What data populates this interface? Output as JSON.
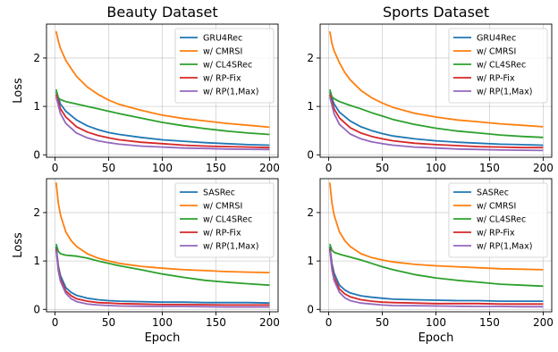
{
  "chart_data": [
    {
      "type": "line",
      "title": "Beauty Dataset",
      "xlabel": "",
      "ylabel": "Loss",
      "xlim": [
        -8,
        208
      ],
      "ylim": [
        -0.05,
        2.7
      ],
      "xticks": [
        0,
        50,
        100,
        150,
        200
      ],
      "yticks": [
        0,
        1,
        2
      ],
      "grid": true,
      "legend": "top-right",
      "series": [
        {
          "name": "GRU4Rec",
          "color": "#1f77b4",
          "x": [
            1,
            5,
            10,
            20,
            30,
            40,
            50,
            60,
            80,
            100,
            120,
            140,
            160,
            180,
            200
          ],
          "y": [
            1.3,
            1.05,
            0.9,
            0.72,
            0.6,
            0.52,
            0.46,
            0.42,
            0.36,
            0.31,
            0.28,
            0.25,
            0.23,
            0.21,
            0.2
          ]
        },
        {
          "name": "w/ CMRSI",
          "color": "#ff7f0e",
          "x": [
            1,
            3,
            5,
            10,
            15,
            20,
            30,
            40,
            50,
            60,
            80,
            100,
            120,
            140,
            160,
            180,
            200
          ],
          "y": [
            2.55,
            2.35,
            2.2,
            1.95,
            1.78,
            1.62,
            1.4,
            1.25,
            1.13,
            1.04,
            0.92,
            0.82,
            0.75,
            0.7,
            0.65,
            0.61,
            0.57
          ]
        },
        {
          "name": "w/ CL4SRec",
          "color": "#2ca02c",
          "x": [
            1,
            3,
            5,
            10,
            20,
            30,
            40,
            50,
            60,
            80,
            100,
            120,
            140,
            160,
            180,
            200
          ],
          "y": [
            1.35,
            1.18,
            1.14,
            1.1,
            1.05,
            1.0,
            0.95,
            0.9,
            0.85,
            0.76,
            0.67,
            0.6,
            0.54,
            0.49,
            0.45,
            0.42
          ]
        },
        {
          "name": "w/ RP-Fix",
          "color": "#d62728",
          "x": [
            1,
            5,
            10,
            20,
            30,
            40,
            50,
            60,
            80,
            100,
            120,
            140,
            160,
            180,
            200
          ],
          "y": [
            1.25,
            0.95,
            0.78,
            0.58,
            0.47,
            0.4,
            0.35,
            0.31,
            0.26,
            0.23,
            0.2,
            0.18,
            0.17,
            0.16,
            0.15
          ]
        },
        {
          "name": "w/ RP(1,Max)",
          "color": "#9467bd",
          "x": [
            1,
            5,
            10,
            20,
            30,
            40,
            50,
            60,
            80,
            100,
            120,
            140,
            160,
            180,
            200
          ],
          "y": [
            1.2,
            0.85,
            0.65,
            0.45,
            0.35,
            0.29,
            0.25,
            0.22,
            0.18,
            0.16,
            0.14,
            0.13,
            0.12,
            0.115,
            0.11
          ]
        }
      ]
    },
    {
      "type": "line",
      "title": "Sports Dataset",
      "xlabel": "",
      "ylabel": "",
      "xlim": [
        -8,
        208
      ],
      "ylim": [
        -0.05,
        2.7
      ],
      "xticks": [
        0,
        50,
        100,
        150,
        200
      ],
      "yticks": [
        0,
        1,
        2
      ],
      "grid": true,
      "legend": "top-right",
      "series": [
        {
          "name": "GRU4Rec",
          "color": "#1f77b4",
          "x": [
            1,
            5,
            10,
            20,
            30,
            40,
            50,
            60,
            80,
            100,
            120,
            140,
            160,
            180,
            200
          ],
          "y": [
            1.3,
            1.05,
            0.88,
            0.7,
            0.58,
            0.5,
            0.44,
            0.39,
            0.33,
            0.29,
            0.26,
            0.24,
            0.22,
            0.21,
            0.2
          ]
        },
        {
          "name": "w/ CMRSI",
          "color": "#ff7f0e",
          "x": [
            1,
            3,
            5,
            10,
            15,
            20,
            30,
            40,
            50,
            60,
            80,
            100,
            120,
            140,
            160,
            180,
            200
          ],
          "y": [
            2.55,
            2.3,
            2.15,
            1.9,
            1.7,
            1.55,
            1.33,
            1.18,
            1.07,
            0.98,
            0.86,
            0.78,
            0.72,
            0.68,
            0.64,
            0.61,
            0.58
          ]
        },
        {
          "name": "w/ CL4SRec",
          "color": "#2ca02c",
          "x": [
            1,
            3,
            5,
            10,
            20,
            30,
            40,
            50,
            60,
            80,
            100,
            120,
            140,
            160,
            180,
            200
          ],
          "y": [
            1.35,
            1.2,
            1.16,
            1.1,
            1.02,
            0.95,
            0.87,
            0.8,
            0.73,
            0.63,
            0.55,
            0.49,
            0.45,
            0.41,
            0.38,
            0.36
          ]
        },
        {
          "name": "w/ RP-Fix",
          "color": "#d62728",
          "x": [
            1,
            5,
            10,
            20,
            30,
            40,
            50,
            60,
            80,
            100,
            120,
            140,
            160,
            180,
            200
          ],
          "y": [
            1.25,
            0.95,
            0.76,
            0.56,
            0.45,
            0.38,
            0.33,
            0.29,
            0.24,
            0.21,
            0.19,
            0.17,
            0.16,
            0.15,
            0.15
          ]
        },
        {
          "name": "w/ RP(1,Max)",
          "color": "#9467bd",
          "x": [
            1,
            5,
            10,
            20,
            30,
            40,
            50,
            60,
            80,
            100,
            120,
            140,
            160,
            180,
            200
          ],
          "y": [
            1.2,
            0.85,
            0.63,
            0.43,
            0.33,
            0.27,
            0.23,
            0.2,
            0.16,
            0.14,
            0.12,
            0.11,
            0.1,
            0.095,
            0.09
          ]
        }
      ]
    },
    {
      "type": "line",
      "title": "",
      "xlabel": "Epoch",
      "ylabel": "Loss",
      "xlim": [
        -8,
        208
      ],
      "ylim": [
        -0.05,
        2.7
      ],
      "xticks": [
        0,
        50,
        100,
        150,
        200
      ],
      "yticks": [
        0,
        1,
        2
      ],
      "grid": true,
      "legend": "top-right",
      "series": [
        {
          "name": "SASRec",
          "color": "#1f77b4",
          "x": [
            1,
            3,
            5,
            10,
            15,
            20,
            30,
            40,
            50,
            60,
            80,
            100,
            120,
            140,
            160,
            180,
            200
          ],
          "y": [
            1.3,
            0.9,
            0.7,
            0.45,
            0.35,
            0.29,
            0.23,
            0.2,
            0.18,
            0.17,
            0.16,
            0.15,
            0.15,
            0.14,
            0.14,
            0.14,
            0.13
          ]
        },
        {
          "name": "w/ CMRSI",
          "color": "#ff7f0e",
          "x": [
            1,
            3,
            5,
            10,
            15,
            20,
            30,
            40,
            50,
            60,
            80,
            100,
            120,
            140,
            160,
            180,
            200
          ],
          "y": [
            2.62,
            2.2,
            1.95,
            1.6,
            1.42,
            1.3,
            1.15,
            1.06,
            1.0,
            0.95,
            0.89,
            0.85,
            0.82,
            0.8,
            0.78,
            0.77,
            0.76
          ]
        },
        {
          "name": "w/ CL4SRec",
          "color": "#2ca02c",
          "x": [
            1,
            3,
            5,
            10,
            20,
            30,
            40,
            50,
            60,
            80,
            100,
            120,
            140,
            160,
            180,
            200
          ],
          "y": [
            1.35,
            1.2,
            1.15,
            1.12,
            1.1,
            1.06,
            1.0,
            0.95,
            0.9,
            0.82,
            0.73,
            0.66,
            0.6,
            0.56,
            0.53,
            0.5
          ]
        },
        {
          "name": "w/ RP-Fix",
          "color": "#d62728",
          "x": [
            1,
            3,
            5,
            10,
            15,
            20,
            30,
            40,
            50,
            60,
            80,
            100,
            120,
            140,
            160,
            180,
            200
          ],
          "y": [
            1.25,
            0.85,
            0.63,
            0.38,
            0.28,
            0.22,
            0.17,
            0.14,
            0.13,
            0.12,
            0.11,
            0.1,
            0.1,
            0.095,
            0.09,
            0.09,
            0.09
          ]
        },
        {
          "name": "w/ RP(1,Max)",
          "color": "#9467bd",
          "x": [
            1,
            3,
            5,
            10,
            15,
            20,
            30,
            40,
            50,
            60,
            80,
            100,
            120,
            140,
            160,
            180,
            200
          ],
          "y": [
            1.22,
            0.8,
            0.58,
            0.33,
            0.22,
            0.16,
            0.11,
            0.09,
            0.08,
            0.07,
            0.065,
            0.06,
            0.06,
            0.055,
            0.05,
            0.05,
            0.05
          ]
        }
      ]
    },
    {
      "type": "line",
      "title": "",
      "xlabel": "Epoch",
      "ylabel": "",
      "xlim": [
        -8,
        208
      ],
      "ylim": [
        -0.05,
        2.7
      ],
      "xticks": [
        0,
        50,
        100,
        150,
        200
      ],
      "yticks": [
        0,
        1,
        2
      ],
      "grid": true,
      "legend": "top-right",
      "series": [
        {
          "name": "SASRec",
          "color": "#1f77b4",
          "x": [
            1,
            3,
            5,
            10,
            15,
            20,
            30,
            40,
            50,
            60,
            80,
            100,
            120,
            140,
            160,
            180,
            200
          ],
          "y": [
            1.3,
            0.95,
            0.75,
            0.5,
            0.4,
            0.34,
            0.28,
            0.25,
            0.23,
            0.21,
            0.2,
            0.19,
            0.18,
            0.18,
            0.17,
            0.17,
            0.17
          ]
        },
        {
          "name": "w/ CMRSI",
          "color": "#ff7f0e",
          "x": [
            1,
            3,
            5,
            10,
            15,
            20,
            30,
            40,
            50,
            60,
            80,
            100,
            120,
            140,
            160,
            180,
            200
          ],
          "y": [
            2.62,
            2.2,
            1.95,
            1.6,
            1.42,
            1.3,
            1.15,
            1.07,
            1.02,
            0.98,
            0.93,
            0.9,
            0.88,
            0.86,
            0.84,
            0.83,
            0.82
          ]
        },
        {
          "name": "w/ CL4SRec",
          "color": "#2ca02c",
          "x": [
            1,
            3,
            5,
            10,
            20,
            30,
            40,
            50,
            60,
            80,
            100,
            120,
            140,
            160,
            180,
            200
          ],
          "y": [
            1.35,
            1.22,
            1.18,
            1.14,
            1.08,
            1.02,
            0.95,
            0.88,
            0.82,
            0.72,
            0.65,
            0.6,
            0.56,
            0.52,
            0.5,
            0.48
          ]
        },
        {
          "name": "w/ RP-Fix",
          "color": "#d62728",
          "x": [
            1,
            3,
            5,
            10,
            15,
            20,
            30,
            40,
            50,
            60,
            80,
            100,
            120,
            140,
            160,
            180,
            200
          ],
          "y": [
            1.25,
            0.88,
            0.66,
            0.42,
            0.32,
            0.26,
            0.2,
            0.17,
            0.15,
            0.14,
            0.13,
            0.12,
            0.12,
            0.12,
            0.11,
            0.11,
            0.11
          ]
        },
        {
          "name": "w/ RP(1,Max)",
          "color": "#9467bd",
          "x": [
            1,
            3,
            5,
            10,
            15,
            20,
            30,
            40,
            50,
            60,
            80,
            100,
            120,
            140,
            160,
            180,
            200
          ],
          "y": [
            1.22,
            0.82,
            0.6,
            0.35,
            0.24,
            0.18,
            0.13,
            0.11,
            0.09,
            0.08,
            0.075,
            0.07,
            0.065,
            0.06,
            0.06,
            0.055,
            0.055
          ]
        }
      ]
    }
  ]
}
